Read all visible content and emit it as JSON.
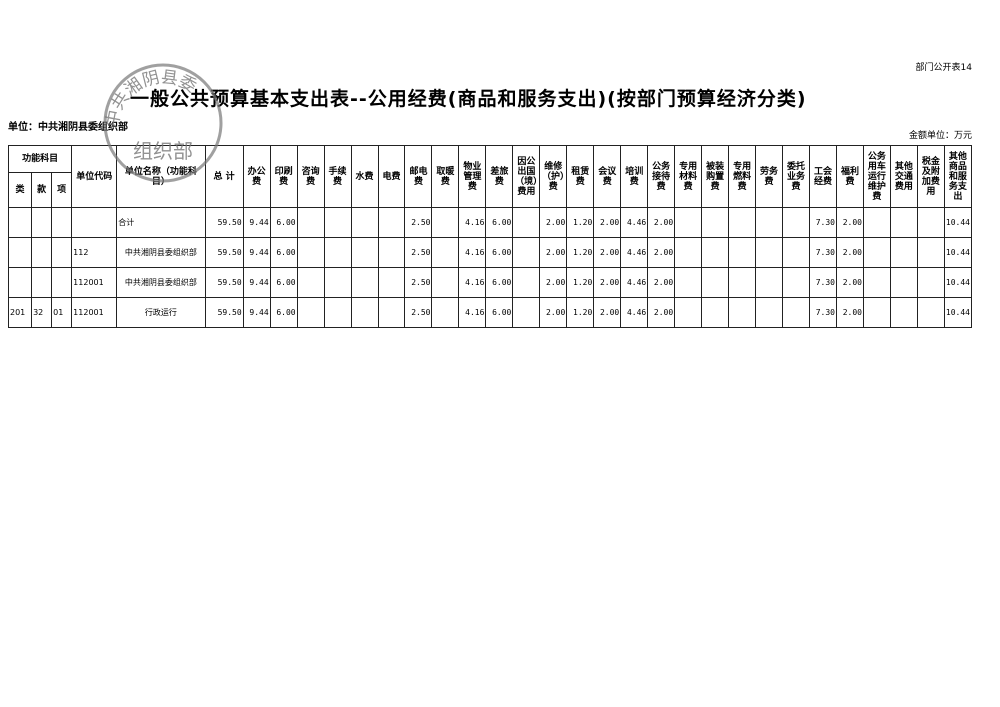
{
  "header": {
    "doc_id": "部门公开表14",
    "title": "一般公共预算基本支出表--公用经费(商品和服务支出)(按部门预算经济分类)",
    "unit": "单位：中共湘阴县委组织部",
    "currency": "金额单位：万元"
  },
  "stamp": {
    "arc": "中共湘阴县委",
    "center": "组织部"
  },
  "table": {
    "group": "功能科目",
    "subheaders": [
      "类",
      "款",
      "项"
    ],
    "columns": [
      "单位代码",
      "单位名称（功能科目）",
      "总 计",
      "办公费",
      "印刷费",
      "咨询费",
      "手续费",
      "水费",
      "电费",
      "邮电费",
      "取暖费",
      "物业管理费",
      "差旅费",
      "因公出国（境）费用",
      "维修（护）费",
      "租赁费",
      "会议费",
      "培训费",
      "公务接待费",
      "专用材料费",
      "被装购置费",
      "专用燃料费",
      "劳务费",
      "委托业务费",
      "工会经费",
      "福利费",
      "公务用车运行维护费",
      "其他交通费用",
      "税金及附加费用",
      "其他商品和服务支出"
    ],
    "rows": [
      {
        "lei": null,
        "kuan": null,
        "xiang": null,
        "code": null,
        "name": "合计",
        "values": [
          "59.50",
          "9.44",
          "6.00",
          null,
          null,
          null,
          null,
          "2.50",
          null,
          "4.16",
          "6.00",
          null,
          "2.00",
          "1.20",
          "2.00",
          "4.46",
          "2.00",
          null,
          null,
          null,
          null,
          null,
          "7.30",
          "2.00",
          null,
          null,
          null,
          "10.44"
        ]
      },
      {
        "lei": null,
        "kuan": null,
        "xiang": null,
        "code": "112",
        "name": "中共湘阴县委组织部",
        "values": [
          "59.50",
          "9.44",
          "6.00",
          null,
          null,
          null,
          null,
          "2.50",
          null,
          "4.16",
          "6.00",
          null,
          "2.00",
          "1.20",
          "2.00",
          "4.46",
          "2.00",
          null,
          null,
          null,
          null,
          null,
          "7.30",
          "2.00",
          null,
          null,
          null,
          "10.44"
        ]
      },
      {
        "lei": null,
        "kuan": null,
        "xiang": null,
        "code": "112001",
        "name": "中共湘阴县委组织部",
        "values": [
          "59.50",
          "9.44",
          "6.00",
          null,
          null,
          null,
          null,
          "2.50",
          null,
          "4.16",
          "6.00",
          null,
          "2.00",
          "1.20",
          "2.00",
          "4.46",
          "2.00",
          null,
          null,
          null,
          null,
          null,
          "7.30",
          "2.00",
          null,
          null,
          null,
          "10.44"
        ]
      },
      {
        "lei": "201",
        "kuan": "32",
        "xiang": "01",
        "code": "112001",
        "name": "行政运行",
        "values": [
          "59.50",
          "9.44",
          "6.00",
          null,
          null,
          null,
          null,
          "2.50",
          null,
          "4.16",
          "6.00",
          null,
          "2.00",
          "1.20",
          "2.00",
          "4.46",
          "2.00",
          null,
          null,
          null,
          null,
          null,
          "7.30",
          "2.00",
          null,
          null,
          null,
          "10.44"
        ]
      }
    ]
  }
}
